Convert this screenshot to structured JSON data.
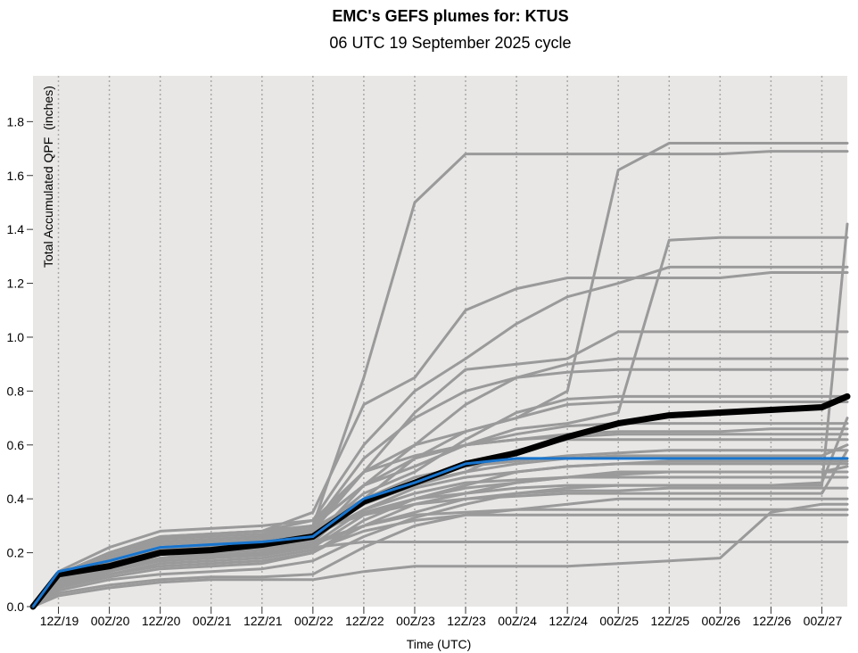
{
  "chart_data": {
    "type": "line",
    "title": "EMC's GEFS plumes for: KTUS",
    "subtitle": "06 UTC 19 September 2025 cycle",
    "xlabel": "Time (UTC)",
    "ylabel": "Total Accumulated QPF  (inches)",
    "x_units": "hours since 06Z/19",
    "xlim": [
      0,
      192
    ],
    "ylim": [
      0,
      1.97
    ],
    "grid": "vertical dotted at x ticks",
    "yticks": [
      0.0,
      0.2,
      0.4,
      0.6,
      0.8,
      1.0,
      1.2,
      1.4,
      1.6,
      1.8
    ],
    "ytick_labels": [
      "0.0",
      "0.2",
      "0.4",
      "0.6",
      "0.8",
      "1.0",
      "1.2",
      "1.4",
      "1.6",
      "1.8"
    ],
    "xticks": [
      6,
      18,
      30,
      42,
      54,
      66,
      78,
      90,
      102,
      114,
      126,
      138,
      150,
      162,
      174,
      186
    ],
    "xtick_labels": [
      "12Z/19",
      "00Z/20",
      "12Z/20",
      "00Z/21",
      "12Z/21",
      "00Z/22",
      "12Z/22",
      "00Z/23",
      "12Z/23",
      "00Z/24",
      "12Z/24",
      "00Z/25",
      "12Z/25",
      "00Z/26",
      "12Z/26",
      "00Z/27"
    ],
    "x": [
      0,
      6,
      18,
      30,
      42,
      54,
      66,
      78,
      90,
      102,
      114,
      126,
      138,
      150,
      162,
      174,
      186,
      192
    ],
    "colors": {
      "members": "#9a9a9a",
      "mean": "#000000",
      "control": "#1874cd",
      "background": "#e8e7e6"
    },
    "members": [
      [
        0,
        0.12,
        0.2,
        0.25,
        0.26,
        0.27,
        0.3,
        0.85,
        1.5,
        1.68,
        1.68,
        1.68,
        1.68,
        1.68,
        1.68,
        1.69,
        1.69,
        1.69
      ],
      [
        0,
        0.13,
        0.22,
        0.28,
        0.29,
        0.3,
        0.32,
        0.5,
        0.6,
        0.65,
        0.7,
        0.8,
        1.62,
        1.72,
        1.72,
        1.72,
        1.72,
        1.72
      ],
      [
        0,
        0.1,
        0.15,
        0.2,
        0.22,
        0.24,
        0.27,
        0.35,
        0.4,
        0.42,
        0.44,
        0.45,
        0.45,
        0.45,
        0.45,
        0.45,
        0.45,
        1.42
      ],
      [
        0,
        0.11,
        0.18,
        0.24,
        0.25,
        0.26,
        0.3,
        0.45,
        0.52,
        0.6,
        0.66,
        0.68,
        0.72,
        1.36,
        1.37,
        1.37,
        1.37,
        1.37
      ],
      [
        0,
        0.1,
        0.2,
        0.26,
        0.27,
        0.28,
        0.32,
        0.6,
        0.8,
        0.92,
        1.05,
        1.15,
        1.2,
        1.26,
        1.26,
        1.26,
        1.26,
        1.26
      ],
      [
        0,
        0.12,
        0.2,
        0.25,
        0.27,
        0.28,
        0.35,
        0.75,
        0.85,
        1.1,
        1.18,
        1.22,
        1.22,
        1.22,
        1.22,
        1.24,
        1.24,
        1.24
      ],
      [
        0,
        0.1,
        0.17,
        0.22,
        0.23,
        0.24,
        0.28,
        0.5,
        0.72,
        0.88,
        0.9,
        0.92,
        1.02,
        1.02,
        1.02,
        1.02,
        1.02,
        1.02
      ],
      [
        0,
        0.09,
        0.15,
        0.2,
        0.21,
        0.22,
        0.25,
        0.45,
        0.6,
        0.75,
        0.85,
        0.9,
        0.92,
        0.92,
        0.92,
        0.92,
        0.92,
        0.92
      ],
      [
        0,
        0.11,
        0.18,
        0.22,
        0.23,
        0.25,
        0.3,
        0.55,
        0.7,
        0.8,
        0.85,
        0.87,
        0.88,
        0.88,
        0.88,
        0.88,
        0.88,
        0.88
      ],
      [
        0,
        0.1,
        0.16,
        0.21,
        0.22,
        0.23,
        0.27,
        0.42,
        0.5,
        0.62,
        0.72,
        0.77,
        0.78,
        0.78,
        0.78,
        0.78,
        0.78,
        0.78
      ],
      [
        0,
        0.08,
        0.13,
        0.18,
        0.2,
        0.21,
        0.24,
        0.4,
        0.55,
        0.65,
        0.7,
        0.75,
        0.76,
        0.76,
        0.76,
        0.76,
        0.76,
        0.76
      ],
      [
        0,
        0.12,
        0.2,
        0.24,
        0.25,
        0.26,
        0.3,
        0.45,
        0.55,
        0.6,
        0.64,
        0.67,
        0.68,
        0.68,
        0.68,
        0.68,
        0.68,
        0.68
      ],
      [
        0,
        0.1,
        0.17,
        0.22,
        0.23,
        0.24,
        0.29,
        0.4,
        0.48,
        0.52,
        0.54,
        0.56,
        0.57,
        0.58,
        0.58,
        0.58,
        0.58,
        0.58
      ],
      [
        0,
        0.09,
        0.14,
        0.18,
        0.19,
        0.2,
        0.23,
        0.36,
        0.44,
        0.48,
        0.5,
        0.52,
        0.53,
        0.54,
        0.54,
        0.54,
        0.54,
        0.54
      ],
      [
        0,
        0.07,
        0.11,
        0.14,
        0.15,
        0.16,
        0.2,
        0.3,
        0.38,
        0.42,
        0.46,
        0.48,
        0.5,
        0.5,
        0.5,
        0.5,
        0.5,
        0.52
      ],
      [
        0,
        0.06,
        0.1,
        0.12,
        0.13,
        0.14,
        0.17,
        0.26,
        0.33,
        0.38,
        0.42,
        0.44,
        0.45,
        0.45,
        0.45,
        0.45,
        0.46,
        0.7
      ],
      [
        0,
        0.05,
        0.08,
        0.1,
        0.11,
        0.11,
        0.12,
        0.22,
        0.3,
        0.34,
        0.36,
        0.38,
        0.4,
        0.4,
        0.4,
        0.4,
        0.4,
        0.4
      ],
      [
        0,
        0.04,
        0.07,
        0.09,
        0.1,
        0.1,
        0.1,
        0.13,
        0.15,
        0.15,
        0.15,
        0.15,
        0.16,
        0.17,
        0.18,
        0.35,
        0.38,
        0.38
      ],
      [
        0,
        0.1,
        0.17,
        0.2,
        0.21,
        0.22,
        0.24,
        0.3,
        0.34,
        0.35,
        0.36,
        0.36,
        0.36,
        0.36,
        0.36,
        0.36,
        0.36,
        0.36
      ],
      [
        0,
        0.09,
        0.14,
        0.18,
        0.19,
        0.2,
        0.22,
        0.24,
        0.24,
        0.24,
        0.24,
        0.24,
        0.24,
        0.24,
        0.24,
        0.24,
        0.24,
        0.24
      ],
      [
        0,
        0.11,
        0.18,
        0.22,
        0.23,
        0.25,
        0.3,
        0.45,
        0.52,
        0.6,
        0.62,
        0.64,
        0.65,
        0.65,
        0.65,
        0.66,
        0.66,
        0.66
      ],
      [
        0,
        0.08,
        0.12,
        0.15,
        0.16,
        0.17,
        0.2,
        0.32,
        0.4,
        0.44,
        0.46,
        0.48,
        0.49,
        0.5,
        0.5,
        0.5,
        0.5,
        0.5
      ],
      [
        0,
        0.1,
        0.16,
        0.2,
        0.21,
        0.22,
        0.26,
        0.38,
        0.45,
        0.5,
        0.53,
        0.55,
        0.56,
        0.56,
        0.56,
        0.56,
        0.56,
        0.6
      ],
      [
        0,
        0.12,
        0.19,
        0.23,
        0.24,
        0.25,
        0.28,
        0.4,
        0.46,
        0.5,
        0.58,
        0.62,
        0.62,
        0.62,
        0.62,
        0.62,
        0.62,
        0.62
      ],
      [
        0,
        0.07,
        0.12,
        0.16,
        0.17,
        0.18,
        0.21,
        0.28,
        0.32,
        0.34,
        0.34,
        0.34,
        0.34,
        0.34,
        0.34,
        0.34,
        0.34,
        0.34
      ],
      [
        0,
        0.09,
        0.14,
        0.17,
        0.18,
        0.2,
        0.23,
        0.3,
        0.35,
        0.4,
        0.42,
        0.43,
        0.43,
        0.44,
        0.44,
        0.44,
        0.44,
        0.44
      ],
      [
        0,
        0.1,
        0.18,
        0.24,
        0.25,
        0.26,
        0.28,
        0.34,
        0.4,
        0.45,
        0.5,
        0.52,
        0.53,
        0.53,
        0.53,
        0.53,
        0.53,
        0.53
      ],
      [
        0,
        0.11,
        0.16,
        0.2,
        0.21,
        0.23,
        0.26,
        0.36,
        0.42,
        0.46,
        0.47,
        0.48,
        0.48,
        0.48,
        0.48,
        0.48,
        0.48,
        0.48
      ],
      [
        0,
        0.08,
        0.13,
        0.17,
        0.18,
        0.19,
        0.22,
        0.34,
        0.38,
        0.4,
        0.41,
        0.42,
        0.42,
        0.42,
        0.42,
        0.42,
        0.42,
        0.58
      ],
      [
        0,
        0.1,
        0.2,
        0.26,
        0.27,
        0.28,
        0.3,
        0.5,
        0.56,
        0.6,
        0.62,
        0.63,
        0.64,
        0.64,
        0.64,
        0.64,
        0.64,
        0.64
      ]
    ],
    "mean": [
      0,
      0.12,
      0.15,
      0.2,
      0.21,
      0.23,
      0.26,
      0.39,
      0.46,
      0.53,
      0.57,
      0.63,
      0.68,
      0.71,
      0.72,
      0.73,
      0.74,
      0.78
    ],
    "control": [
      0,
      0.13,
      0.17,
      0.22,
      0.23,
      0.24,
      0.26,
      0.4,
      0.46,
      0.53,
      0.55,
      0.55,
      0.55,
      0.55,
      0.55,
      0.55,
      0.55,
      0.55
    ]
  }
}
